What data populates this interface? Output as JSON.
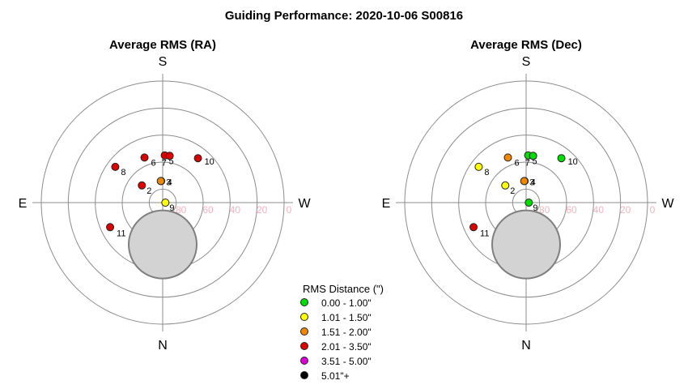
{
  "title": "Guiding Performance: 2020-10-06 S00816",
  "compass": {
    "top": "S",
    "bottom": "N",
    "left": "E",
    "right": "W"
  },
  "ring_labels": [
    "80",
    "60",
    "40",
    "20",
    "0"
  ],
  "rms_categories": [
    {
      "label": "0.00 - 1.00\"",
      "color": "#00dd00"
    },
    {
      "label": "1.01 - 1.50\"",
      "color": "#ffff00"
    },
    {
      "label": "1.51 - 2.00\"",
      "color": "#ee8800"
    },
    {
      "label": "2.01 - 3.50\"",
      "color": "#dd0000"
    },
    {
      "label": "3.51 - 5.00\"",
      "color": "#dd00dd"
    },
    {
      "label": "5.01\"+",
      "color": "#000000"
    }
  ],
  "legend": {
    "title": "RMS Distance (\")"
  },
  "chart_data": [
    {
      "type": "scatter",
      "title": "Average RMS (RA)",
      "projection": "polar sky plot (altitude 0-90, S top, W right)",
      "r_axis": "altitude (deg)",
      "rings": [
        0,
        20,
        40,
        60,
        80
      ],
      "moon": {
        "az": 0,
        "alt": 59
      },
      "points": [
        {
          "label": "2",
          "az": 230.5,
          "alt": 70,
          "cat": 3
        },
        {
          "label": "3",
          "az": 184.0,
          "alt": 74,
          "cat": 2
        },
        {
          "label": "4",
          "az": 185.0,
          "alt": 74,
          "cat": 2
        },
        {
          "label": "5",
          "az": 177.5,
          "alt": 55,
          "cat": 3
        },
        {
          "label": "6",
          "az": 202.0,
          "alt": 54,
          "cat": 3
        },
        {
          "label": "7",
          "az": 171.5,
          "alt": 55,
          "cat": 3
        },
        {
          "label": "8",
          "az": 233.0,
          "alt": 46,
          "cat": 3
        },
        {
          "label": "9",
          "az": 90.0,
          "alt": 88,
          "cat": 1
        },
        {
          "label": "10",
          "az": 141.5,
          "alt": 48,
          "cat": 3
        },
        {
          "label": "11",
          "az": 295.0,
          "alt": 47,
          "cat": 3
        }
      ]
    },
    {
      "type": "scatter",
      "title": "Average RMS (Dec)",
      "projection": "polar sky plot (altitude 0-90, S top, W right)",
      "r_axis": "altitude (deg)",
      "rings": [
        0,
        20,
        40,
        60,
        80
      ],
      "moon": {
        "az": 0,
        "alt": 59
      },
      "points": [
        {
          "label": "2",
          "az": 230.5,
          "alt": 70,
          "cat": 1
        },
        {
          "label": "3",
          "az": 184.0,
          "alt": 74,
          "cat": 2
        },
        {
          "label": "4",
          "az": 185.0,
          "alt": 74,
          "cat": 2
        },
        {
          "label": "5",
          "az": 177.5,
          "alt": 55,
          "cat": 0
        },
        {
          "label": "6",
          "az": 202.0,
          "alt": 54,
          "cat": 2
        },
        {
          "label": "7",
          "az": 171.5,
          "alt": 55,
          "cat": 0
        },
        {
          "label": "8",
          "az": 233.0,
          "alt": 46,
          "cat": 1
        },
        {
          "label": "9",
          "az": 90.0,
          "alt": 88,
          "cat": 0
        },
        {
          "label": "10",
          "az": 141.5,
          "alt": 48,
          "cat": 0
        },
        {
          "label": "11",
          "az": 295.0,
          "alt": 47,
          "cat": 3
        }
      ]
    }
  ]
}
